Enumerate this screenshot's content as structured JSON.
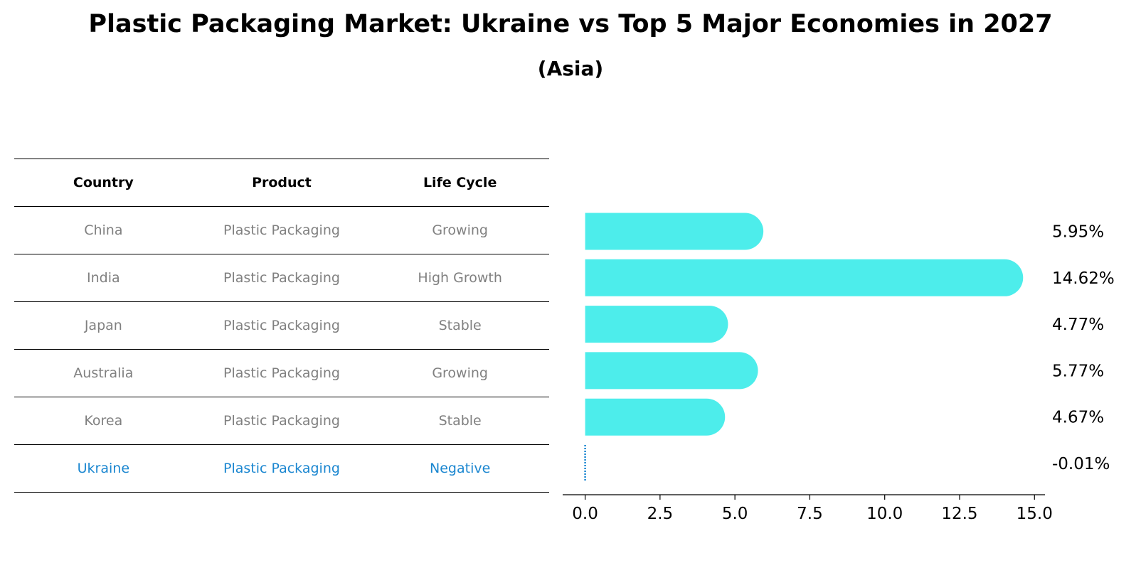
{
  "title": "Plastic Packaging Market: Ukraine vs Top 5 Major Economies in 2027",
  "subtitle": "(Asia)",
  "table": {
    "headers": [
      "Country",
      "Product",
      "Life Cycle"
    ],
    "rows": [
      [
        "China",
        "Plastic Packaging",
        "Growing"
      ],
      [
        "India",
        "Plastic Packaging",
        "High Growth"
      ],
      [
        "Japan",
        "Plastic Packaging",
        "Stable"
      ],
      [
        "Australia",
        "Plastic Packaging",
        "Growing"
      ],
      [
        "Korea",
        "Plastic Packaging",
        "Stable"
      ],
      [
        "Ukraine",
        "Plastic Packaging",
        "Negative"
      ]
    ],
    "highlight_row": 5,
    "text_color": "#808080",
    "highlight_color": "#1a86d0"
  },
  "chart_data": {
    "type": "bar",
    "orientation": "horizontal",
    "categories": [
      "China",
      "India",
      "Japan",
      "Australia",
      "Korea",
      "Ukraine"
    ],
    "values": [
      5.95,
      14.62,
      4.77,
      5.77,
      4.67,
      -0.01
    ],
    "value_labels": [
      "5.95%",
      "14.62%",
      "4.77%",
      "5.77%",
      "4.67%",
      "-0.01%"
    ],
    "xlim": [
      -0.75,
      15.35
    ],
    "xticks": [
      0.0,
      2.5,
      5.0,
      7.5,
      10.0,
      12.5,
      15.0
    ],
    "xtick_labels": [
      "0.0",
      "2.5",
      "5.0",
      "7.5",
      "10.0",
      "12.5",
      "15.0"
    ],
    "bar_color": "#4dedeb",
    "negative_color": "#1a86d0",
    "xlabel": "",
    "ylabel": "",
    "grid": false
  }
}
